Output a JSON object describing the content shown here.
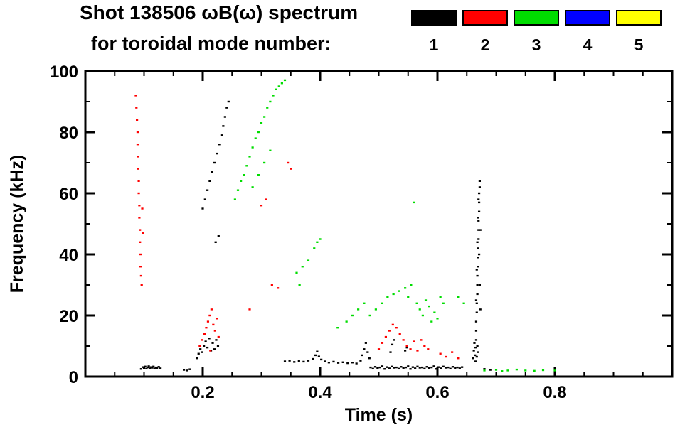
{
  "title_line1": "Shot 138506 ωB(ω) spectrum",
  "title_line2": "for toroidal mode number:",
  "legend": {
    "entries": [
      {
        "label": "1",
        "color": "#000000"
      },
      {
        "label": "2",
        "color": "#ff0000"
      },
      {
        "label": "3",
        "color": "#00dd00"
      },
      {
        "label": "4",
        "color": "#0000ff"
      },
      {
        "label": "5",
        "color": "#ffff00"
      }
    ]
  },
  "chart_data": {
    "type": "scatter",
    "title": "Shot 138506 ωB(ω) spectrum for toroidal mode number",
    "xlabel": "Time (s)",
    "ylabel": "Frequency (kHz)",
    "xlim": [
      0,
      1.0
    ],
    "ylim": [
      0,
      100
    ],
    "x_ticks": [
      0.2,
      0.4,
      0.6,
      0.8
    ],
    "y_ticks": [
      0,
      20,
      40,
      60,
      80,
      100
    ],
    "x_minor_step": 0.05,
    "y_minor_step": 10,
    "grid": false,
    "legend_position": "top-right",
    "marker_px": [
      3.2,
      2.4
    ],
    "series": [
      {
        "name": "n1",
        "color": "#000000",
        "points": [
          [
            0.095,
            2.5
          ],
          [
            0.098,
            3.1
          ],
          [
            0.1,
            2.8
          ],
          [
            0.102,
            3.3
          ],
          [
            0.104,
            2.6
          ],
          [
            0.106,
            3.0
          ],
          [
            0.108,
            3.4
          ],
          [
            0.11,
            2.7
          ],
          [
            0.112,
            3.1
          ],
          [
            0.114,
            2.9
          ],
          [
            0.116,
            3.3
          ],
          [
            0.118,
            2.6
          ],
          [
            0.12,
            3.0
          ],
          [
            0.122,
            2.8
          ],
          [
            0.125,
            3.2
          ],
          [
            0.128,
            2.7
          ],
          [
            0.168,
            2.2
          ],
          [
            0.173,
            2.0
          ],
          [
            0.178,
            2.4
          ],
          [
            0.19,
            6
          ],
          [
            0.193,
            7.5
          ],
          [
            0.196,
            9
          ],
          [
            0.199,
            8
          ],
          [
            0.202,
            10
          ],
          [
            0.205,
            11.5
          ],
          [
            0.208,
            9.5
          ],
          [
            0.211,
            12.5
          ],
          [
            0.214,
            8.5
          ],
          [
            0.217,
            11
          ],
          [
            0.22,
            9
          ],
          [
            0.223,
            12
          ],
          [
            0.226,
            10
          ],
          [
            0.222,
            44
          ],
          [
            0.227,
            46
          ],
          [
            0.2,
            55
          ],
          [
            0.204,
            58
          ],
          [
            0.208,
            61
          ],
          [
            0.212,
            64
          ],
          [
            0.216,
            67
          ],
          [
            0.22,
            70
          ],
          [
            0.224,
            73
          ],
          [
            0.228,
            76
          ],
          [
            0.232,
            79
          ],
          [
            0.235,
            82
          ],
          [
            0.238,
            85
          ],
          [
            0.241,
            88
          ],
          [
            0.244,
            90
          ],
          [
            0.34,
            5.0
          ],
          [
            0.348,
            5.2
          ],
          [
            0.356,
            4.8
          ],
          [
            0.364,
            5.1
          ],
          [
            0.372,
            4.9
          ],
          [
            0.38,
            5.2
          ],
          [
            0.388,
            5.8
          ],
          [
            0.392,
            7.0
          ],
          [
            0.395,
            8.2
          ],
          [
            0.398,
            6.6
          ],
          [
            0.402,
            5.6
          ],
          [
            0.408,
            5.0
          ],
          [
            0.415,
            4.6
          ],
          [
            0.423,
            4.9
          ],
          [
            0.431,
            4.5
          ],
          [
            0.439,
            4.7
          ],
          [
            0.447,
            4.4
          ],
          [
            0.455,
            4.6
          ],
          [
            0.462,
            4.3
          ],
          [
            0.469,
            5.2
          ],
          [
            0.472,
            7.0
          ],
          [
            0.475,
            9.0
          ],
          [
            0.478,
            11.0
          ],
          [
            0.481,
            8.0
          ],
          [
            0.484,
            6.0
          ],
          [
            0.486,
            3.0
          ],
          [
            0.49,
            2.6
          ],
          [
            0.494,
            3.2
          ],
          [
            0.498,
            2.8
          ],
          [
            0.502,
            3.0
          ],
          [
            0.506,
            3.4
          ],
          [
            0.51,
            2.5
          ],
          [
            0.514,
            3.1
          ],
          [
            0.518,
            2.7
          ],
          [
            0.522,
            3.3
          ],
          [
            0.526,
            2.9
          ],
          [
            0.53,
            3.0
          ],
          [
            0.534,
            2.6
          ],
          [
            0.538,
            3.2
          ],
          [
            0.542,
            2.8
          ],
          [
            0.546,
            3.0
          ],
          [
            0.55,
            3.4
          ],
          [
            0.554,
            2.5
          ],
          [
            0.558,
            3.1
          ],
          [
            0.562,
            2.7
          ],
          [
            0.566,
            3.3
          ],
          [
            0.57,
            2.9
          ],
          [
            0.574,
            3.0
          ],
          [
            0.578,
            2.6
          ],
          [
            0.582,
            3.2
          ],
          [
            0.586,
            2.8
          ],
          [
            0.59,
            3.0
          ],
          [
            0.594,
            3.4
          ],
          [
            0.598,
            2.5
          ],
          [
            0.602,
            3.1
          ],
          [
            0.606,
            2.7
          ],
          [
            0.61,
            3.3
          ],
          [
            0.614,
            2.9
          ],
          [
            0.618,
            3.0
          ],
          [
            0.622,
            2.6
          ],
          [
            0.626,
            3.2
          ],
          [
            0.63,
            2.8
          ],
          [
            0.634,
            3.0
          ],
          [
            0.638,
            2.7
          ],
          [
            0.642,
            3.1
          ],
          [
            0.52,
            8
          ],
          [
            0.523,
            10.5
          ],
          [
            0.526,
            12
          ],
          [
            0.545,
            8.5
          ],
          [
            0.548,
            9.5
          ],
          [
            0.68,
            2.5
          ],
          [
            0.69,
            2.2
          ],
          [
            0.661,
            6
          ],
          [
            0.662,
            8.5
          ],
          [
            0.663,
            11
          ],
          [
            0.664,
            7
          ],
          [
            0.665,
            9.5
          ],
          [
            0.666,
            12
          ],
          [
            0.667,
            6.5
          ],
          [
            0.668,
            10
          ],
          [
            0.669,
            8
          ],
          [
            0.665,
            5
          ],
          [
            0.666,
            15
          ],
          [
            0.666,
            18
          ],
          [
            0.667,
            21
          ],
          [
            0.667,
            24
          ],
          [
            0.668,
            27
          ],
          [
            0.668,
            30
          ],
          [
            0.668,
            33
          ],
          [
            0.669,
            36
          ],
          [
            0.669,
            39
          ],
          [
            0.669,
            42
          ],
          [
            0.67,
            45
          ],
          [
            0.67,
            48
          ],
          [
            0.67,
            51
          ],
          [
            0.671,
            54
          ],
          [
            0.671,
            57
          ],
          [
            0.671,
            60
          ],
          [
            0.672,
            62
          ],
          [
            0.672,
            64
          ],
          [
            0.666,
            25
          ],
          [
            0.667,
            35
          ],
          [
            0.668,
            44
          ],
          [
            0.669,
            52
          ],
          [
            0.67,
            58
          ],
          [
            0.671,
            40
          ],
          [
            0.672,
            30
          ],
          [
            0.673,
            22
          ],
          [
            0.673,
            48
          ]
        ]
      },
      {
        "name": "n2",
        "color": "#ff0000",
        "points": [
          [
            0.086,
            92
          ],
          [
            0.087,
            88
          ],
          [
            0.088,
            84
          ],
          [
            0.089,
            80
          ],
          [
            0.089,
            76
          ],
          [
            0.09,
            72
          ],
          [
            0.09,
            68
          ],
          [
            0.091,
            64
          ],
          [
            0.091,
            60
          ],
          [
            0.092,
            56
          ],
          [
            0.092,
            52
          ],
          [
            0.093,
            48
          ],
          [
            0.093,
            44
          ],
          [
            0.094,
            40
          ],
          [
            0.094,
            36
          ],
          [
            0.095,
            33
          ],
          [
            0.096,
            30
          ],
          [
            0.097,
            55
          ],
          [
            0.098,
            47
          ],
          [
            0.195,
            10
          ],
          [
            0.199,
            12
          ],
          [
            0.203,
            14
          ],
          [
            0.206,
            16
          ],
          [
            0.209,
            18
          ],
          [
            0.212,
            20
          ],
          [
            0.215,
            22
          ],
          [
            0.218,
            17
          ],
          [
            0.221,
            15
          ],
          [
            0.224,
            19
          ],
          [
            0.227,
            13
          ],
          [
            0.213,
            8.5
          ],
          [
            0.28,
            22
          ],
          [
            0.3,
            56
          ],
          [
            0.308,
            58
          ],
          [
            0.318,
            30
          ],
          [
            0.328,
            29
          ],
          [
            0.345,
            70
          ],
          [
            0.35,
            68
          ],
          [
            0.5,
            9
          ],
          [
            0.506,
            11
          ],
          [
            0.512,
            13
          ],
          [
            0.518,
            15
          ],
          [
            0.524,
            17
          ],
          [
            0.53,
            16
          ],
          [
            0.536,
            14
          ],
          [
            0.542,
            12
          ],
          [
            0.548,
            10
          ],
          [
            0.554,
            9
          ],
          [
            0.56,
            11.5
          ],
          [
            0.566,
            8.5
          ],
          [
            0.572,
            12
          ],
          [
            0.578,
            10
          ],
          [
            0.584,
            9
          ],
          [
            0.605,
            7.5
          ],
          [
            0.615,
            6.5
          ],
          [
            0.625,
            8
          ],
          [
            0.635,
            6
          ]
        ]
      },
      {
        "name": "n3",
        "color": "#00dd00",
        "points": [
          [
            0.255,
            58
          ],
          [
            0.26,
            61
          ],
          [
            0.265,
            64
          ],
          [
            0.27,
            66
          ],
          [
            0.275,
            69
          ],
          [
            0.28,
            72
          ],
          [
            0.285,
            75
          ],
          [
            0.29,
            78
          ],
          [
            0.295,
            80
          ],
          [
            0.3,
            83
          ],
          [
            0.305,
            85
          ],
          [
            0.31,
            88
          ],
          [
            0.315,
            90
          ],
          [
            0.32,
            92
          ],
          [
            0.325,
            94
          ],
          [
            0.33,
            95
          ],
          [
            0.335,
            96
          ],
          [
            0.34,
            97
          ],
          [
            0.285,
            62
          ],
          [
            0.295,
            66
          ],
          [
            0.305,
            70
          ],
          [
            0.315,
            74
          ],
          [
            0.36,
            34
          ],
          [
            0.365,
            30
          ],
          [
            0.37,
            36
          ],
          [
            0.38,
            38
          ],
          [
            0.39,
            42
          ],
          [
            0.395,
            44
          ],
          [
            0.4,
            45
          ],
          [
            0.43,
            16
          ],
          [
            0.445,
            18
          ],
          [
            0.455,
            20
          ],
          [
            0.465,
            22
          ],
          [
            0.475,
            24
          ],
          [
            0.485,
            20
          ],
          [
            0.495,
            22
          ],
          [
            0.505,
            24
          ],
          [
            0.515,
            26
          ],
          [
            0.525,
            27
          ],
          [
            0.535,
            28
          ],
          [
            0.545,
            29
          ],
          [
            0.55,
            26
          ],
          [
            0.555,
            30
          ],
          [
            0.56,
            57
          ],
          [
            0.565,
            24
          ],
          [
            0.57,
            22
          ],
          [
            0.575,
            20
          ],
          [
            0.58,
            25
          ],
          [
            0.585,
            23
          ],
          [
            0.59,
            18
          ],
          [
            0.595,
            21
          ],
          [
            0.6,
            19
          ],
          [
            0.605,
            26
          ],
          [
            0.61,
            24
          ],
          [
            0.635,
            26
          ],
          [
            0.645,
            24
          ],
          [
            0.68,
            2.0
          ],
          [
            0.7,
            2.2
          ],
          [
            0.71,
            1.8
          ],
          [
            0.72,
            2.0
          ],
          [
            0.735,
            2.3
          ],
          [
            0.75,
            2.0
          ],
          [
            0.765,
            1.9
          ],
          [
            0.78,
            2.1
          ],
          [
            0.8,
            2.0
          ]
        ]
      },
      {
        "name": "n4",
        "color": "#0000ff",
        "points": []
      },
      {
        "name": "n5",
        "color": "#ffff00",
        "points": []
      }
    ]
  }
}
